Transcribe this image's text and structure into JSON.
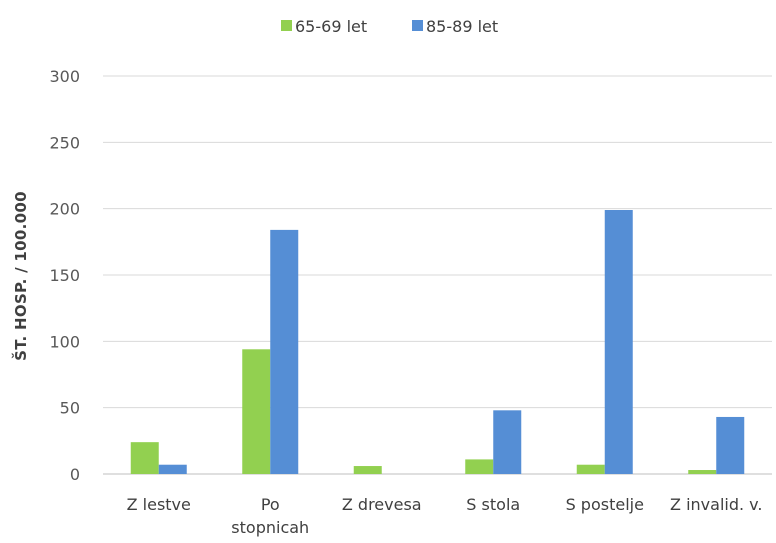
{
  "chart_data": {
    "type": "bar",
    "categories": [
      [
        "Z lestve"
      ],
      [
        "Po",
        "stopnicah"
      ],
      [
        "Z drevesa"
      ],
      [
        "S stola"
      ],
      [
        "S postelje"
      ],
      [
        "Z invalid. v."
      ]
    ],
    "series": [
      {
        "name": "65-69 let",
        "color": "#92d050",
        "values": [
          24,
          94,
          6,
          11,
          7,
          3
        ]
      },
      {
        "name": "85-89 let",
        "color": "#558ed5",
        "values": [
          7,
          184,
          0,
          48,
          199,
          43
        ]
      }
    ],
    "xlabel": "",
    "ylabel": "ŠT. HOSP. / 100.000",
    "ylim": [
      0,
      300
    ],
    "yticks": [
      0,
      50,
      100,
      150,
      200,
      250,
      300
    ],
    "grid": true,
    "legend_position": "top"
  }
}
